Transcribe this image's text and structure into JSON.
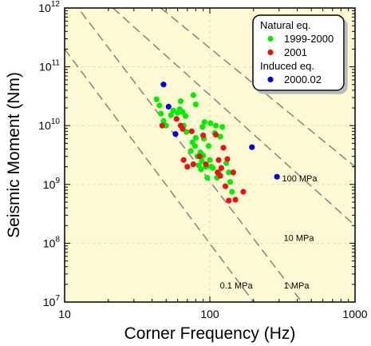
{
  "chart_data": {
    "type": "scatter",
    "x_scale": "log",
    "y_scale": "log",
    "xlabel": "Corner Frequency (Hz)",
    "ylabel": "Seismic Moment (Nm)",
    "xlim": [
      10,
      1000
    ],
    "ylim": [
      10000000.0,
      1000000000000.0
    ],
    "x_ticks": [
      {
        "value": 10,
        "label": "10"
      },
      {
        "value": 100,
        "label": "100"
      },
      {
        "value": 1000,
        "label": "1000"
      }
    ],
    "y_ticks": [
      {
        "value": 10000000.0,
        "base": "10",
        "exp": "7"
      },
      {
        "value": 100000000.0,
        "base": "10",
        "exp": "8"
      },
      {
        "value": 1000000000.0,
        "base": "10",
        "exp": "9"
      },
      {
        "value": 10000000000.0,
        "base": "10",
        "exp": "10"
      },
      {
        "value": 100000000000.0,
        "base": "10",
        "exp": "11"
      },
      {
        "value": 1000000000000.0,
        "base": "10",
        "exp": "12"
      }
    ],
    "grid": true,
    "background_color": "#fdf9d3",
    "stress_drop_lines": [
      {
        "label": "0.1 MPa",
        "points": [
          [
            10,
            200000000000.0
          ],
          [
            200,
            10000000.0
          ]
        ]
      },
      {
        "label": "1 MPa",
        "points": [
          [
            10,
            2000000000000.0
          ],
          [
            430,
            10000000.0
          ]
        ]
      },
      {
        "label": "10 MPa",
        "points": [
          [
            21.5,
            1000000000000.0
          ],
          [
            1000,
            200000000.0
          ]
        ]
      },
      {
        "label": "100 MPa",
        "points": [
          [
            46,
            1000000000000.0
          ],
          [
            1000,
            2000000000.0
          ]
        ]
      }
    ],
    "legend": {
      "position": "top-right",
      "groups": [
        {
          "title": "Natural eq.",
          "entries": [
            {
              "series": 0,
              "label": "1999-2000"
            },
            {
              "series": 1,
              "label": "2001"
            }
          ]
        },
        {
          "title": "Induced eq.",
          "entries": [
            {
              "series": 2,
              "label": "2000.02"
            }
          ]
        }
      ]
    },
    "series": [
      {
        "name": "1999-2000",
        "color": "#00ee00",
        "points": [
          [
            43,
            28000000000.0
          ],
          [
            45,
            22000000000.0
          ],
          [
            46,
            16000000000.0
          ],
          [
            48,
            12000000000.0
          ],
          [
            50,
            10000000000.0
          ],
          [
            54,
            15000000000.0
          ],
          [
            56,
            18000000000.0
          ],
          [
            60,
            16500000000.0
          ],
          [
            62,
            19000000000.0
          ],
          [
            63,
            26000000000.0
          ],
          [
            65,
            17000000000.0
          ],
          [
            66,
            10000000000.0
          ],
          [
            68,
            14500000000.0
          ],
          [
            69,
            7800000000.0
          ],
          [
            74,
            3700000000.0
          ],
          [
            76,
            5200000000.0
          ],
          [
            77,
            33000000000.0
          ],
          [
            79,
            4500000000.0
          ],
          [
            80,
            23000000000.0
          ],
          [
            80,
            6200000000.0
          ],
          [
            82,
            3000000000.0
          ],
          [
            84,
            2100000000.0
          ],
          [
            86,
            3500000000.0
          ],
          [
            87,
            1800000000.0
          ],
          [
            88,
            2500000000.0
          ],
          [
            89,
            9500000000.0
          ],
          [
            90,
            3100000000.0
          ],
          [
            91,
            6000000000.0
          ],
          [
            92,
            11500000000.0
          ],
          [
            94,
            2000000000.0
          ],
          [
            96,
            1300000000.0
          ],
          [
            98,
            4500000000.0
          ],
          [
            100,
            2600000000.0
          ],
          [
            101,
            11000000000.0
          ],
          [
            102,
            2000000000.0
          ],
          [
            105,
            1900000000.0
          ],
          [
            108,
            7500000000.0
          ],
          [
            110,
            10000000000.0
          ],
          [
            112,
            1300000000.0
          ],
          [
            115,
            1600000000.0
          ],
          [
            118,
            6500000000.0
          ],
          [
            122,
            9500000000.0
          ],
          [
            130,
            2300000000.0
          ],
          [
            135,
            1600000000.0
          ],
          [
            138,
            1100000000.0
          ],
          [
            142,
            750000000.0
          ]
        ]
      },
      {
        "name": "2001",
        "color": "#ee1111",
        "points": [
          [
            47,
            10000000000.0
          ],
          [
            59,
            13000000000.0
          ],
          [
            63,
            10000000000.0
          ],
          [
            65,
            8800000000.0
          ],
          [
            66,
            2600000000.0
          ],
          [
            70,
            2000000000.0
          ],
          [
            75,
            8000000000.0
          ],
          [
            77,
            2200000000.0
          ],
          [
            85,
            3000000000.0
          ],
          [
            90,
            6800000000.0
          ],
          [
            94,
            2200000000.0
          ],
          [
            110,
            7000000000.0
          ],
          [
            113,
            1600000000.0
          ],
          [
            115,
            2600000000.0
          ],
          [
            118,
            1400000000.0
          ],
          [
            120,
            1900000000.0
          ],
          [
            124,
            4200000000.0
          ],
          [
            128,
            930000000.0
          ],
          [
            132,
            2700000000.0
          ],
          [
            135,
            530000000.0
          ],
          [
            145,
            1600000000.0
          ],
          [
            150,
            550000000.0
          ],
          [
            170,
            750000000.0
          ]
        ]
      },
      {
        "name": "2000.02",
        "color": "#0000dd",
        "points": [
          [
            48,
            50000000000.0
          ],
          [
            52,
            21000000000.0
          ],
          [
            58,
            7200000000.0
          ],
          [
            195,
            4300000000.0
          ],
          [
            290,
            1350000000.0
          ]
        ]
      }
    ]
  }
}
